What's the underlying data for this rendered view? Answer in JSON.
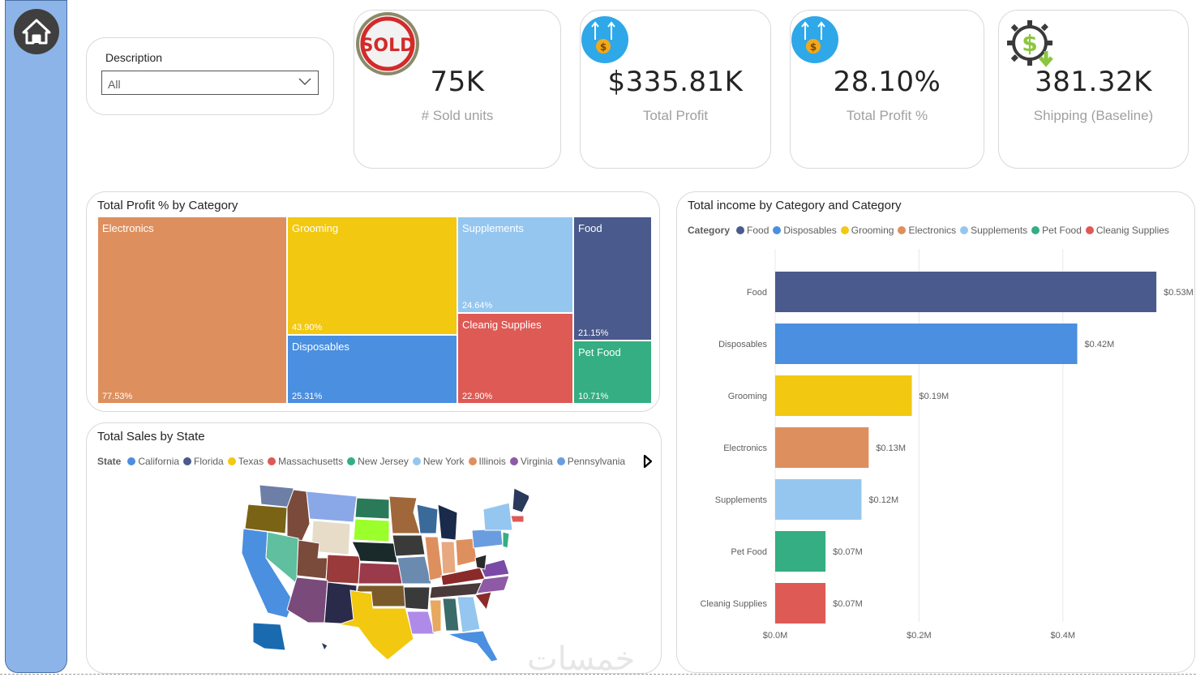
{
  "slicer": {
    "title": "Description",
    "value": "All"
  },
  "kpis": [
    {
      "value": "75K",
      "label": "# Sold units",
      "icon": "sold-stamp-icon"
    },
    {
      "value": "$335.81K",
      "label": "Total Profit",
      "icon": "dollar-coin-arrows-icon"
    },
    {
      "value": "28.10%",
      "label": "Total Profit %",
      "icon": "dollar-coin-arrows-icon"
    },
    {
      "value": "381.32K",
      "label": "Shipping (Baseline)",
      "icon": "dollar-gear-icon"
    }
  ],
  "sold_stamp_text": "SOLD",
  "treemap": {
    "title": "Total Profit % by Category",
    "cells": [
      {
        "name": "Electronics",
        "value": "77.53%",
        "color": "#de8f5e"
      },
      {
        "name": "Grooming",
        "value": "43.90%",
        "color": "#f2c811"
      },
      {
        "name": "Disposables",
        "value": "25.31%",
        "color": "#4a8fe0"
      },
      {
        "name": "Supplements",
        "value": "24.64%",
        "color": "#95c6ef"
      },
      {
        "name": "Cleanig Supplies",
        "value": "22.90%",
        "color": "#de5a55"
      },
      {
        "name": "Food",
        "value": "21.15%",
        "color": "#4a5a8c"
      },
      {
        "name": "Pet Food",
        "value": "10.71%",
        "color": "#34ae82"
      }
    ]
  },
  "map": {
    "title": "Total Sales by State",
    "legend_title": "State",
    "legend": [
      {
        "name": "California",
        "color": "#4a8fe0"
      },
      {
        "name": "Florida",
        "color": "#4a5a8c"
      },
      {
        "name": "Texas",
        "color": "#f2c811"
      },
      {
        "name": "Massachusetts",
        "color": "#de5a55"
      },
      {
        "name": "New Jersey",
        "color": "#34ae82"
      },
      {
        "name": "New York",
        "color": "#95c6ef"
      },
      {
        "name": "Illinois",
        "color": "#de8f5e"
      },
      {
        "name": "Virginia",
        "color": "#8e5aa6"
      },
      {
        "name": "Pennsylvania",
        "color": "#6a9de0"
      }
    ]
  },
  "chart_data": {
    "type": "bar",
    "orientation": "horizontal",
    "title": "Total income by Category and Category",
    "legend_title": "Category",
    "categories": [
      "Food",
      "Disposables",
      "Grooming",
      "Electronics",
      "Supplements",
      "Pet Food",
      "Cleanig Supplies"
    ],
    "values": [
      0.53,
      0.42,
      0.19,
      0.13,
      0.12,
      0.07,
      0.07
    ],
    "value_labels": [
      "$0.53M",
      "$0.42M",
      "$0.19M",
      "$0.13M",
      "$0.12M",
      "$0.07M",
      "$0.07M"
    ],
    "colors": [
      "#4a5a8c",
      "#4a8fe0",
      "#f2c811",
      "#de8f5e",
      "#95c6ef",
      "#34ae82",
      "#de5a55"
    ],
    "xticks": [
      "$0.0M",
      "$0.2M",
      "$0.4M"
    ],
    "xtick_values": [
      0,
      0.2,
      0.4
    ],
    "xlim": [
      0,
      0.54
    ],
    "grid": true,
    "legend_position": "top"
  },
  "watermark": "خمسات"
}
